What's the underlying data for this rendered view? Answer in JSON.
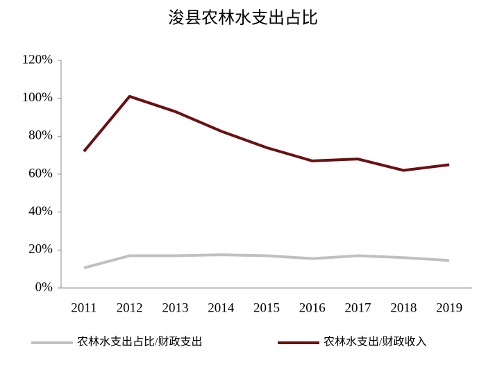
{
  "chart_data": {
    "type": "line",
    "title": "浚县农林水支出占比",
    "categories": [
      "2011",
      "2012",
      "2013",
      "2014",
      "2015",
      "2016",
      "2017",
      "2018",
      "2019"
    ],
    "series": [
      {
        "name": "农林水支出占比/财政支出",
        "color": "#c0c0c0",
        "values": [
          10.6,
          17,
          17,
          17.5,
          17,
          15.5,
          17,
          16,
          14.5
        ]
      },
      {
        "name": "农林水支出/财政收入",
        "color": "#6b0f12",
        "values": [
          72,
          101,
          93,
          82.7,
          74,
          67,
          68,
          62,
          65
        ]
      }
    ],
    "ylim": [
      0,
      120
    ],
    "yticks": [
      {
        "value": 0,
        "label": "0%"
      },
      {
        "value": 20,
        "label": "20%"
      },
      {
        "value": 40,
        "label": "40%"
      },
      {
        "value": 60,
        "label": "60%"
      },
      {
        "value": 80,
        "label": "80%"
      },
      {
        "value": 100,
        "label": "100%"
      },
      {
        "value": 120,
        "label": "120%"
      }
    ],
    "grid": false
  }
}
